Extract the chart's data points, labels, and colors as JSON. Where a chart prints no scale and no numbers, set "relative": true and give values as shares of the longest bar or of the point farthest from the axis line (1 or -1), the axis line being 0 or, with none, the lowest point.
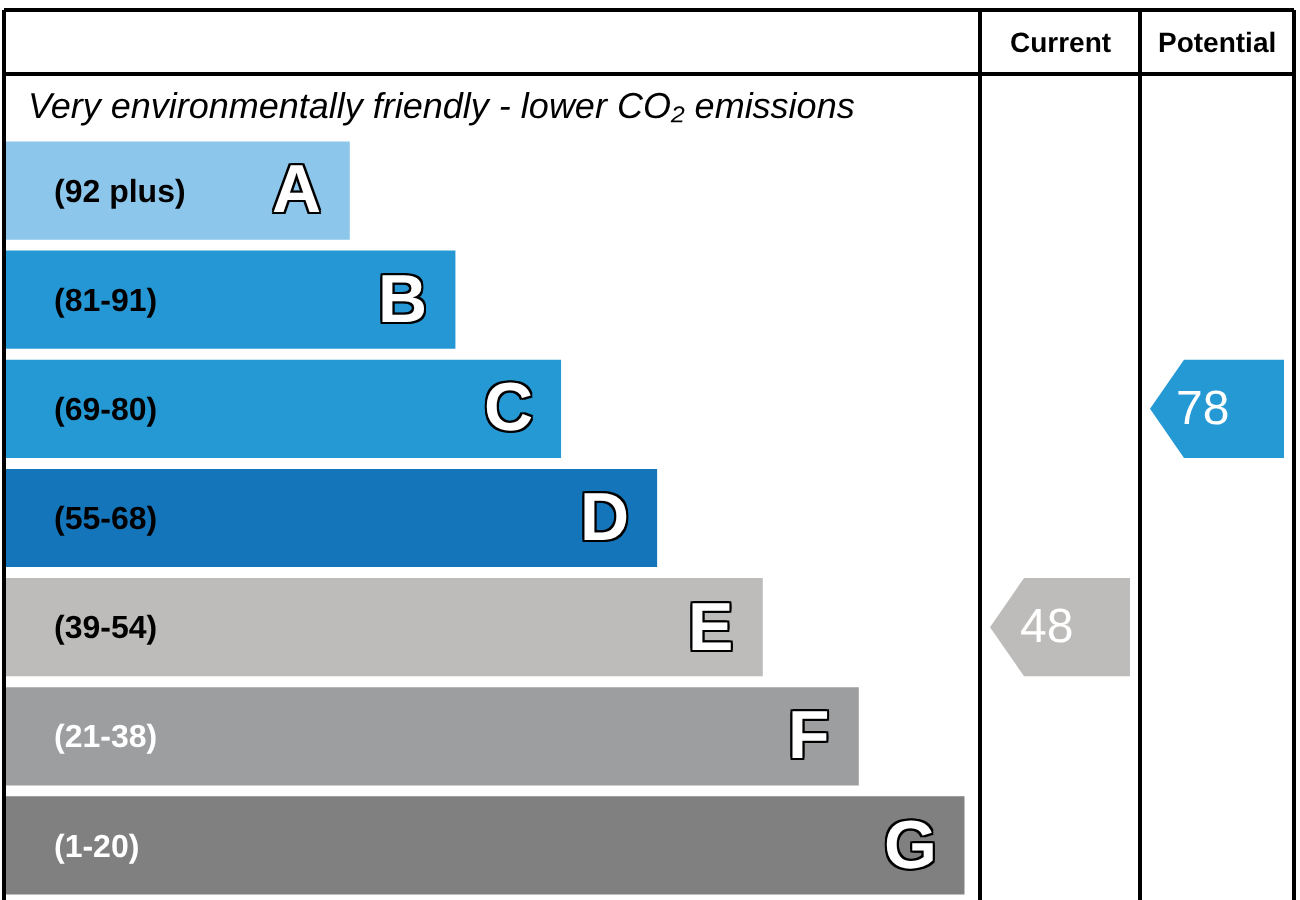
{
  "chart_data": {
    "type": "bar",
    "orientation": "horizontal",
    "relative": true,
    "subtitle": "Very environmentally friendly - lower CO₂ emissions",
    "categories": [
      "(92 plus)",
      "(81-91)",
      "(69-80)",
      "(55-68)",
      "(39-54)",
      "(21-38)",
      "(1-20)"
    ],
    "values": [
      0.36,
      0.47,
      0.58,
      0.68,
      0.79,
      0.89,
      1
    ],
    "colors": [
      "#8cc6ea",
      "#2597d4",
      "#2599d4",
      "#1475ba",
      "#bdbcbb",
      "#9d9ea0",
      "#808080"
    ],
    "annotations": [
      "Current",
      "Potential",
      {
        "text": "A",
        "y": "(92 plus)"
      },
      {
        "text": "B",
        "y": "(81-91)"
      },
      {
        "text": "C",
        "y": "(69-80)"
      },
      {
        "text": "D",
        "y": "(55-68)"
      },
      {
        "text": "E",
        "y": "(39-54)"
      },
      {
        "text": "F",
        "y": "(21-38)"
      },
      {
        "text": "G",
        "y": "(1-20)"
      },
      "48",
      "78"
    ]
  }
}
